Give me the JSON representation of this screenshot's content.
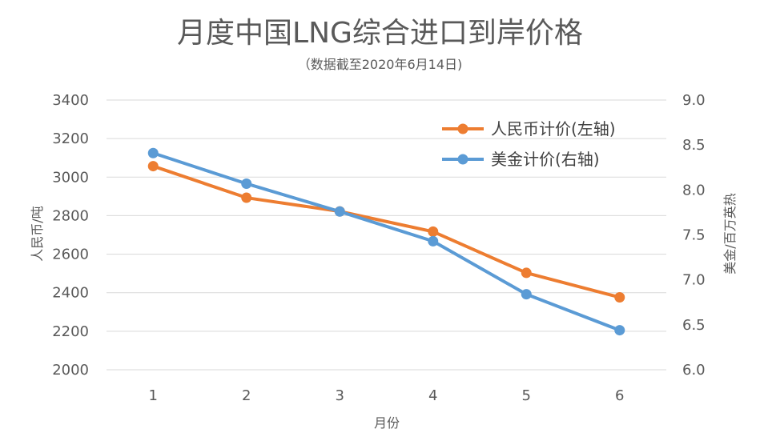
{
  "chart_data": {
    "type": "line",
    "title": "月度中国LNG综合进口到岸价格",
    "subtitle": "（数据截至2020年6月14日)",
    "xlabel": "月份",
    "ylabel": "人民币/吨",
    "y2label": "美金/百万英热",
    "categories": [
      "1",
      "2",
      "3",
      "4",
      "5",
      "6"
    ],
    "ylim": [
      2000,
      3400
    ],
    "yticks": [
      "2000",
      "2200",
      "2400",
      "2600",
      "2800",
      "3000",
      "3200",
      "3400"
    ],
    "y2lim": [
      6.0,
      9.0
    ],
    "y2ticks": [
      "6.0",
      "6.5",
      "7.0",
      "7.5",
      "8.0",
      "8.5",
      "9.0"
    ],
    "grid": true,
    "legend_position": "top-right",
    "series": [
      {
        "name": "人民币计价(左轴)",
        "axis": "left",
        "color": "#ED7D31",
        "values": [
          3057,
          2893,
          2822,
          2717,
          2503,
          2376
        ]
      },
      {
        "name": "美金计价(右轴)",
        "axis": "right",
        "color": "#5B9BD5",
        "values": [
          8.41,
          8.07,
          7.76,
          7.43,
          6.84,
          6.44
        ]
      }
    ]
  }
}
